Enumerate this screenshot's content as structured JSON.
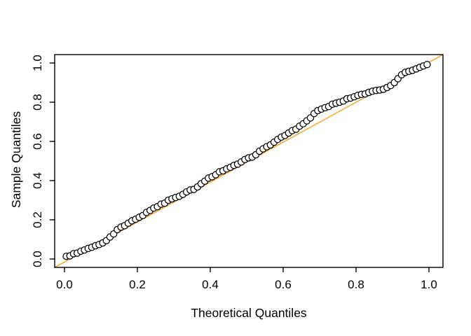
{
  "page": {
    "background": "#ffffff"
  },
  "chart_data": {
    "type": "scatter",
    "subtype": "qq-plot",
    "title": "",
    "xlabel": "Theoretical Quantiles",
    "ylabel": "Sample Quantiles",
    "xlim": [
      -0.04,
      1.04
    ],
    "ylim": [
      -0.04,
      1.04
    ],
    "grid": false,
    "legend": "none",
    "x_tick_values": [
      0.0,
      0.2,
      0.4,
      0.6,
      0.8,
      1.0
    ],
    "x_tick_labels": [
      "0.0",
      "0.2",
      "0.4",
      "0.6",
      "0.8",
      "1.0"
    ],
    "y_tick_values": [
      0.0,
      0.2,
      0.4,
      0.6,
      0.8,
      1.0
    ],
    "y_tick_labels": [
      "0.0",
      "0.2",
      "0.4",
      "0.6",
      "0.8",
      "1.0"
    ],
    "colors": {
      "point_stroke": "#000000",
      "point_fill": "#ffffff",
      "reference_line": "#FFA018",
      "axis": "#000000",
      "text": "#000000"
    },
    "marker": "open-circle",
    "reference_line": {
      "description": "qqline, approximately y = x, drawn across full plot region corner to corner",
      "x1": -0.027,
      "y1": -0.043,
      "x2": 1.038,
      "y2": 1.043
    },
    "points": {
      "x": [
        0.005,
        0.015,
        0.025,
        0.035,
        0.045,
        0.055,
        0.065,
        0.075,
        0.085,
        0.095,
        0.105,
        0.115,
        0.125,
        0.135,
        0.145,
        0.155,
        0.165,
        0.175,
        0.185,
        0.195,
        0.205,
        0.215,
        0.225,
        0.235,
        0.245,
        0.255,
        0.265,
        0.275,
        0.285,
        0.295,
        0.305,
        0.315,
        0.325,
        0.335,
        0.345,
        0.355,
        0.365,
        0.375,
        0.385,
        0.395,
        0.405,
        0.415,
        0.425,
        0.435,
        0.445,
        0.455,
        0.465,
        0.475,
        0.485,
        0.495,
        0.505,
        0.515,
        0.525,
        0.535,
        0.545,
        0.555,
        0.565,
        0.575,
        0.585,
        0.595,
        0.605,
        0.615,
        0.625,
        0.635,
        0.645,
        0.655,
        0.665,
        0.675,
        0.685,
        0.695,
        0.705,
        0.715,
        0.725,
        0.735,
        0.745,
        0.755,
        0.765,
        0.775,
        0.785,
        0.795,
        0.805,
        0.815,
        0.825,
        0.835,
        0.845,
        0.855,
        0.865,
        0.875,
        0.885,
        0.895,
        0.905,
        0.915,
        0.925,
        0.935,
        0.945,
        0.955,
        0.965,
        0.975,
        0.985,
        0.995
      ],
      "y": [
        0.014,
        0.016,
        0.027,
        0.03,
        0.04,
        0.046,
        0.054,
        0.06,
        0.068,
        0.074,
        0.082,
        0.094,
        0.112,
        0.128,
        0.15,
        0.163,
        0.17,
        0.183,
        0.195,
        0.203,
        0.213,
        0.222,
        0.238,
        0.248,
        0.26,
        0.267,
        0.28,
        0.285,
        0.3,
        0.307,
        0.314,
        0.32,
        0.33,
        0.342,
        0.352,
        0.355,
        0.368,
        0.384,
        0.397,
        0.413,
        0.42,
        0.43,
        0.445,
        0.45,
        0.46,
        0.468,
        0.478,
        0.484,
        0.495,
        0.508,
        0.516,
        0.52,
        0.532,
        0.55,
        0.562,
        0.573,
        0.582,
        0.596,
        0.61,
        0.622,
        0.63,
        0.643,
        0.655,
        0.662,
        0.678,
        0.69,
        0.705,
        0.72,
        0.742,
        0.757,
        0.765,
        0.772,
        0.778,
        0.79,
        0.795,
        0.8,
        0.806,
        0.818,
        0.821,
        0.828,
        0.835,
        0.84,
        0.842,
        0.85,
        0.856,
        0.86,
        0.862,
        0.866,
        0.875,
        0.885,
        0.9,
        0.92,
        0.94,
        0.952,
        0.958,
        0.963,
        0.97,
        0.978,
        0.985,
        0.992
      ]
    }
  }
}
